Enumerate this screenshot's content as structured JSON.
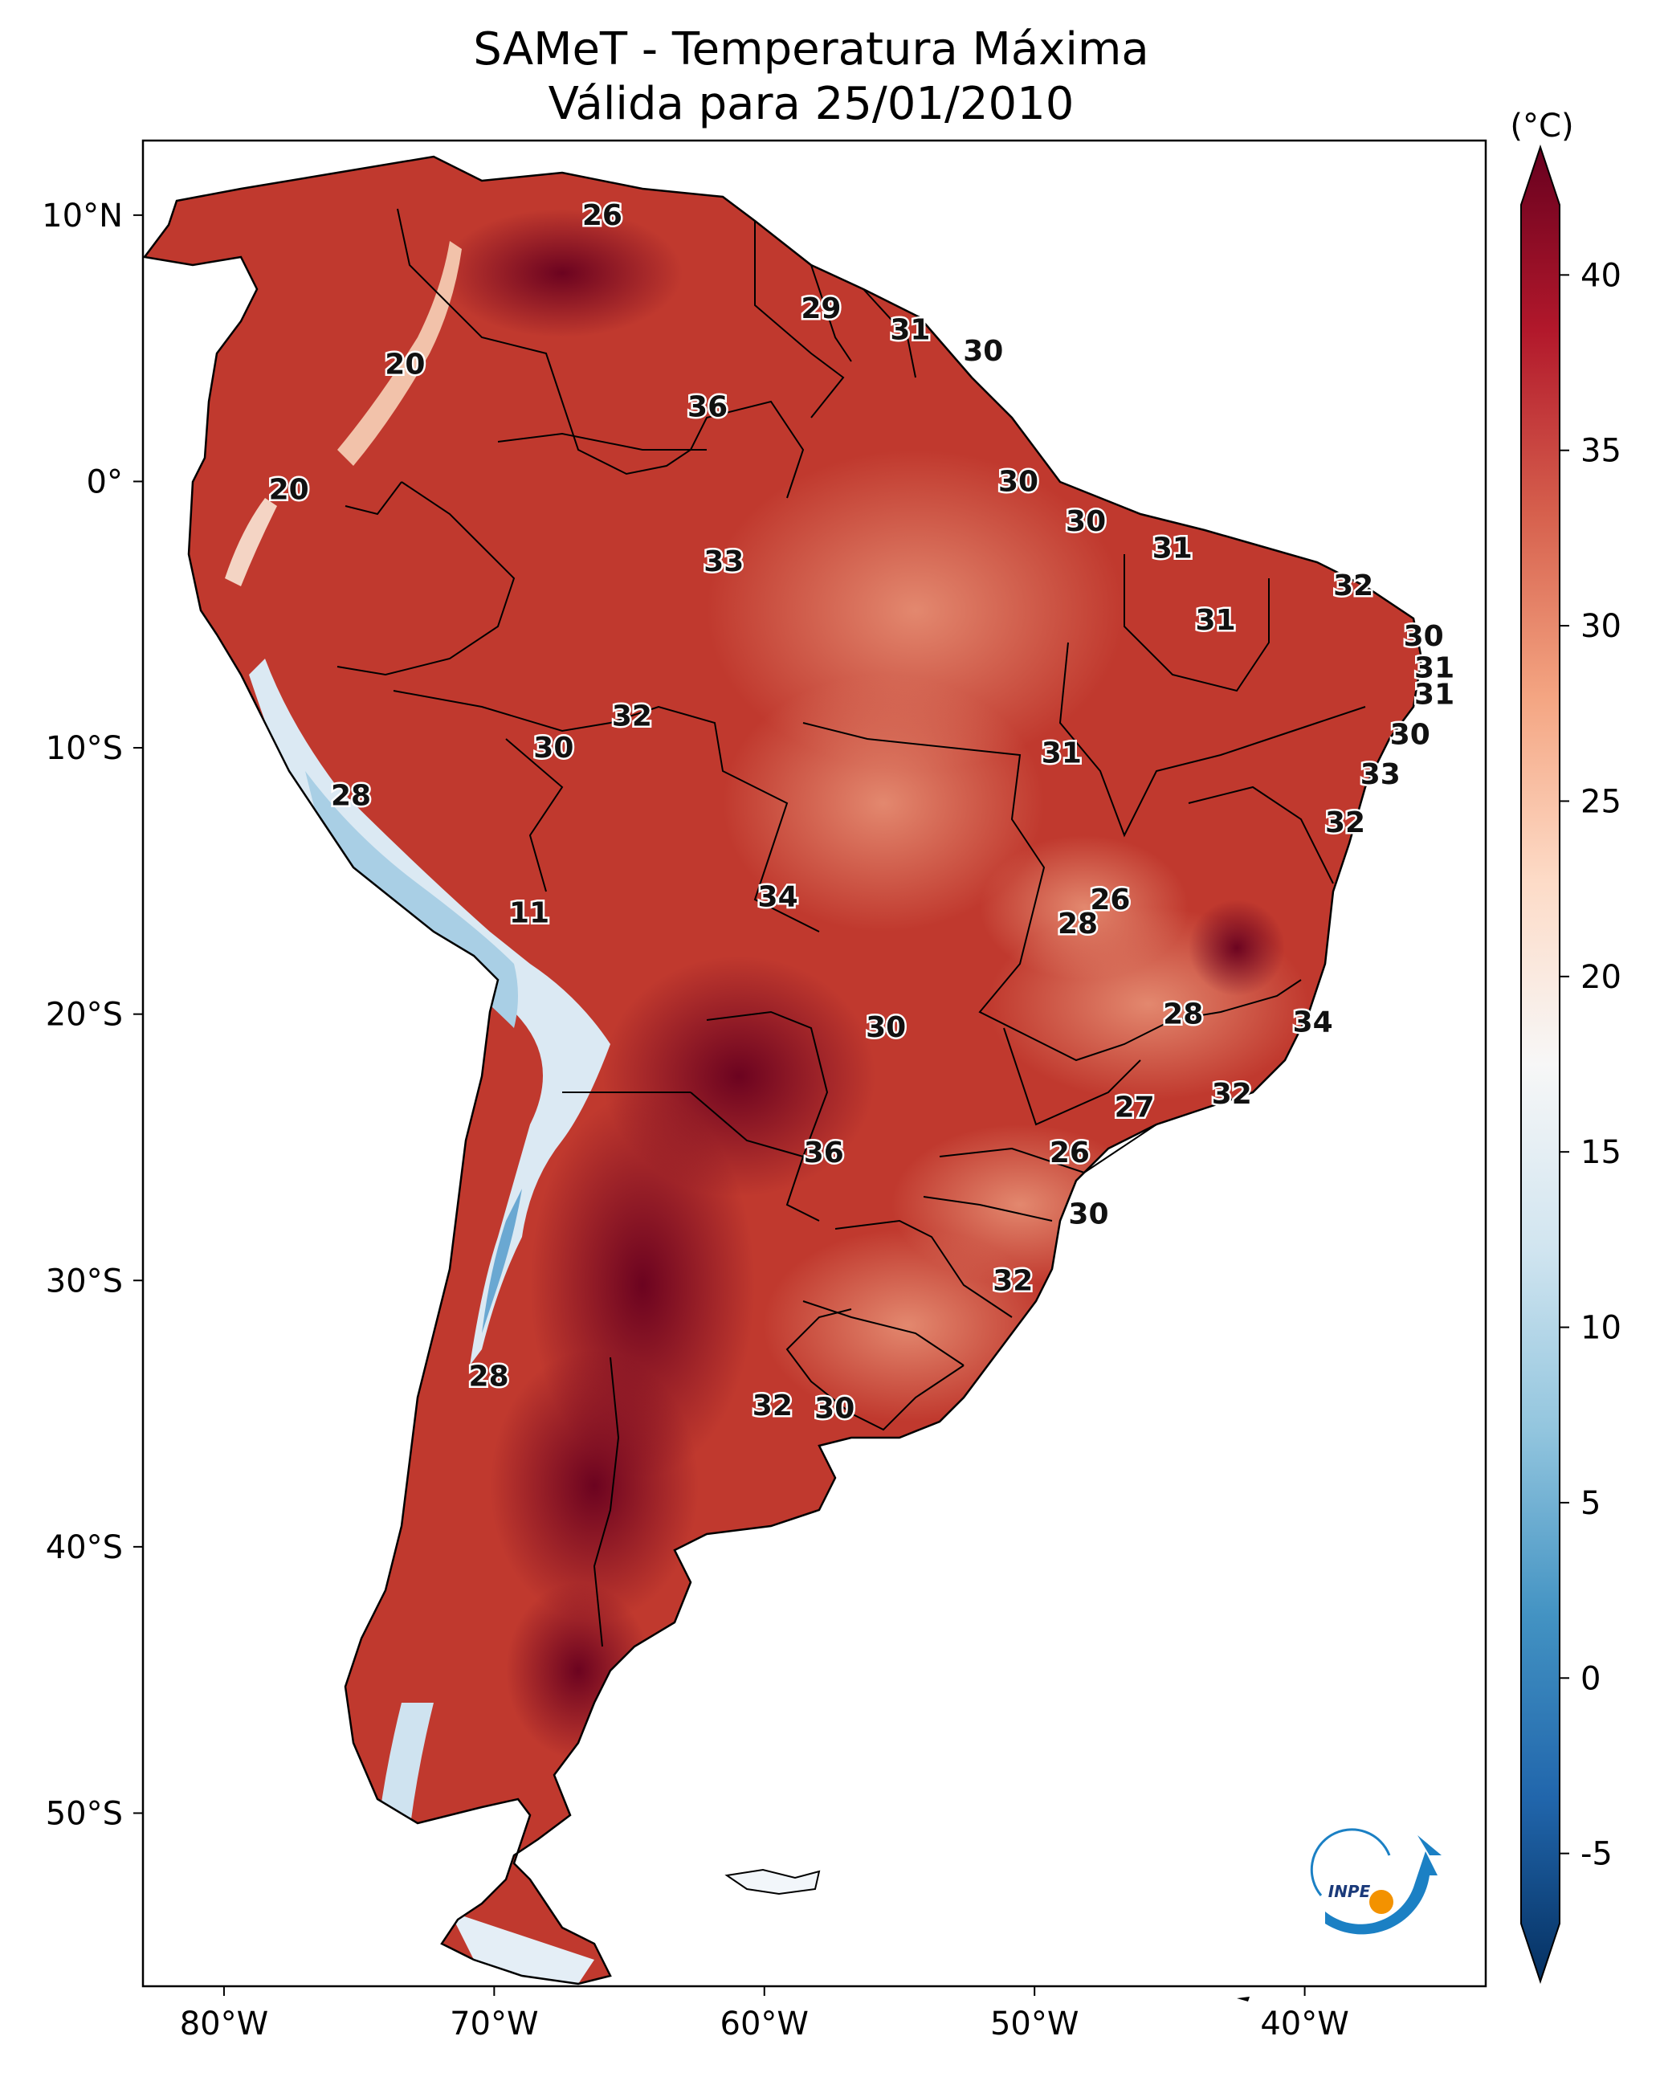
{
  "title": {
    "line1": "SAMeT - Temperatura Máxima",
    "line2": "Válida para 25/01/2010"
  },
  "map": {
    "extent": {
      "lon_min": -83,
      "lon_max": -33.3,
      "lat_min": -56.5,
      "lat_max": 12.8
    },
    "x_ticks": [
      {
        "lon": -80,
        "label": "80°W"
      },
      {
        "lon": -70,
        "label": "70°W"
      },
      {
        "lon": -60,
        "label": "60°W"
      },
      {
        "lon": -50,
        "label": "50°W"
      },
      {
        "lon": -40,
        "label": "40°W"
      }
    ],
    "y_ticks": [
      {
        "lat": 10,
        "label": "10°N"
      },
      {
        "lat": 0,
        "label": "0°"
      },
      {
        "lat": -10,
        "label": "10°S"
      },
      {
        "lat": -20,
        "label": "20°S"
      },
      {
        "lat": -30,
        "label": "30°S"
      },
      {
        "lat": -40,
        "label": "40°S"
      },
      {
        "lat": -50,
        "label": "50°S"
      }
    ],
    "point_labels": [
      {
        "lon": -66.0,
        "lat": 10.0,
        "value": "26"
      },
      {
        "lon": -73.3,
        "lat": 4.4,
        "value": "20"
      },
      {
        "lon": -77.6,
        "lat": -0.3,
        "value": "20"
      },
      {
        "lon": -57.9,
        "lat": 6.5,
        "value": "29"
      },
      {
        "lon": -54.6,
        "lat": 5.7,
        "value": "31"
      },
      {
        "lon": -51.9,
        "lat": 4.9,
        "value": "30"
      },
      {
        "lon": -62.1,
        "lat": 2.8,
        "value": "36"
      },
      {
        "lon": -50.6,
        "lat": 0.0,
        "value": "30"
      },
      {
        "lon": -48.1,
        "lat": -1.5,
        "value": "30"
      },
      {
        "lon": -44.9,
        "lat": -2.5,
        "value": "31"
      },
      {
        "lon": -61.5,
        "lat": -3.0,
        "value": "33"
      },
      {
        "lon": -38.2,
        "lat": -3.9,
        "value": "32"
      },
      {
        "lon": -43.3,
        "lat": -5.2,
        "value": "31"
      },
      {
        "lon": -35.6,
        "lat": -5.8,
        "value": "30"
      },
      {
        "lon": -35.2,
        "lat": -7.0,
        "value": "31"
      },
      {
        "lon": -35.2,
        "lat": -8.0,
        "value": "31"
      },
      {
        "lon": -36.1,
        "lat": -9.5,
        "value": "30"
      },
      {
        "lon": -37.2,
        "lat": -11.0,
        "value": "33"
      },
      {
        "lon": -38.5,
        "lat": -12.8,
        "value": "32"
      },
      {
        "lon": -64.9,
        "lat": -8.8,
        "value": "32"
      },
      {
        "lon": -67.8,
        "lat": -10.0,
        "value": "30"
      },
      {
        "lon": -49.0,
        "lat": -10.2,
        "value": "31"
      },
      {
        "lon": -75.3,
        "lat": -11.8,
        "value": "28"
      },
      {
        "lon": -68.7,
        "lat": -16.2,
        "value": "11"
      },
      {
        "lon": -59.5,
        "lat": -15.6,
        "value": "34"
      },
      {
        "lon": -47.2,
        "lat": -15.7,
        "value": "26"
      },
      {
        "lon": -48.4,
        "lat": -16.6,
        "value": "28"
      },
      {
        "lon": -55.5,
        "lat": -20.5,
        "value": "30"
      },
      {
        "lon": -44.5,
        "lat": -20.0,
        "value": "28"
      },
      {
        "lon": -39.7,
        "lat": -20.3,
        "value": "34"
      },
      {
        "lon": -42.7,
        "lat": -23.0,
        "value": "32"
      },
      {
        "lon": -46.3,
        "lat": -23.5,
        "value": "27"
      },
      {
        "lon": -57.8,
        "lat": -25.2,
        "value": "36"
      },
      {
        "lon": -48.7,
        "lat": -25.2,
        "value": "26"
      },
      {
        "lon": -48.0,
        "lat": -27.5,
        "value": "30"
      },
      {
        "lon": -50.8,
        "lat": -30.0,
        "value": "32"
      },
      {
        "lon": -70.2,
        "lat": -33.6,
        "value": "28"
      },
      {
        "lon": -59.7,
        "lat": -34.7,
        "value": "32"
      },
      {
        "lon": -57.4,
        "lat": -34.8,
        "value": "30"
      }
    ]
  },
  "colorbar": {
    "unit": "(°C)",
    "min": -7,
    "max": 42,
    "ticks": [
      40,
      35,
      30,
      25,
      20,
      15,
      10,
      5,
      0,
      -5
    ],
    "colors": [
      "#053061",
      "#2166ac",
      "#4393c3",
      "#92c5de",
      "#d1e5f0",
      "#f7f7f7",
      "#fddbc7",
      "#f4a582",
      "#d6604d",
      "#b2182b",
      "#67001f"
    ]
  },
  "logo": {
    "text": "INPE",
    "colors": {
      "arc": "#1b80c4",
      "dot": "#f39200"
    }
  }
}
